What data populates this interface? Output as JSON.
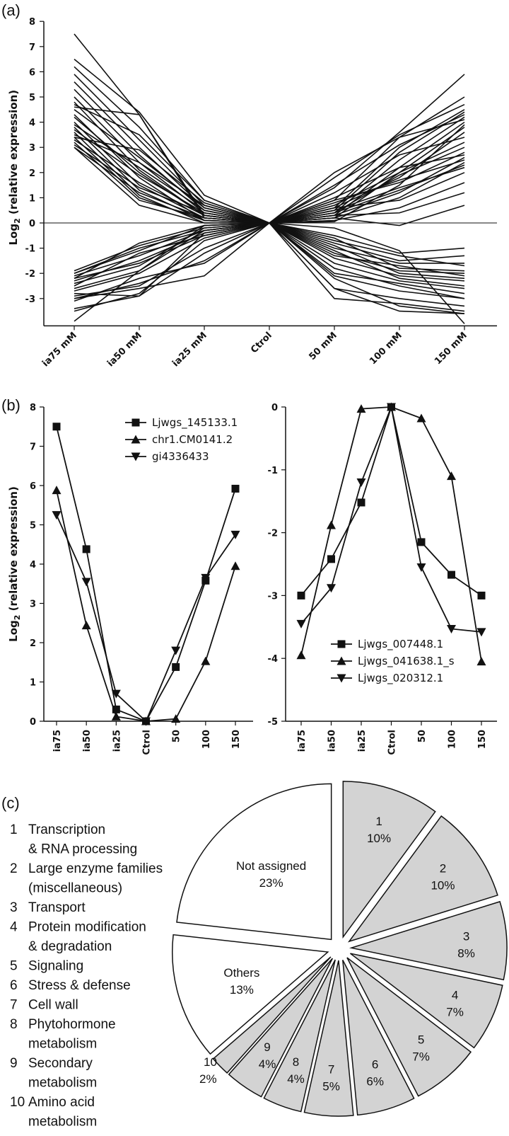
{
  "panels": {
    "a": "(a)",
    "b": "(b)",
    "c": "(c)"
  },
  "chart_data": [
    {
      "id": "a",
      "type": "line",
      "ylabel_main": "Log",
      "ylabel_sub": "2",
      "ylabel_rest": " (relative expression)",
      "categories": [
        "ia75 mM",
        "ia50 mM",
        "ia25 mM",
        "Ctrol",
        "50 mM",
        "100 mM",
        "150 mM"
      ],
      "ylim": [
        -4,
        8
      ],
      "yticks": [
        -3,
        -2,
        -1,
        0,
        1,
        2,
        3,
        4,
        5,
        6,
        7,
        8
      ],
      "series": [
        {
          "values": [
            7.5,
            4.3,
            0.3,
            0,
            1.4,
            3.6,
            5.9
          ]
        },
        {
          "values": [
            6.5,
            4.4,
            1.1,
            0,
            0.9,
            3.4,
            5.0
          ]
        },
        {
          "values": [
            6.2,
            3.8,
            0.9,
            0,
            0.6,
            3.0,
            4.5
          ]
        },
        {
          "values": [
            5.9,
            3.3,
            0.7,
            0,
            1.8,
            3.5,
            4.7
          ]
        },
        {
          "values": [
            5.6,
            3.0,
            0.6,
            0,
            0.5,
            2.8,
            4.4
          ]
        },
        {
          "values": [
            5.3,
            2.7,
            0.5,
            0,
            0.4,
            2.5,
            4.2
          ]
        },
        {
          "values": [
            5.0,
            2.4,
            0.4,
            0,
            0.3,
            2.2,
            4.0
          ]
        },
        {
          "values": [
            4.8,
            2.1,
            0.3,
            0,
            0.2,
            2.0,
            3.8
          ]
        },
        {
          "values": [
            4.6,
            4.3,
            0.2,
            0,
            0.6,
            1.8,
            3.6
          ]
        },
        {
          "values": [
            4.5,
            2.6,
            0.6,
            0,
            1.2,
            2.7,
            3.4
          ]
        },
        {
          "values": [
            4.3,
            1.8,
            0.1,
            0,
            0.05,
            1.5,
            3.9
          ]
        },
        {
          "values": [
            4.2,
            2.0,
            0.3,
            0,
            0.7,
            2.0,
            3.2
          ]
        },
        {
          "values": [
            4.0,
            1.5,
            0.2,
            0,
            0.4,
            1.9,
            3.0
          ]
        },
        {
          "values": [
            3.9,
            2.2,
            0.5,
            0,
            0.9,
            1.6,
            2.8
          ]
        },
        {
          "values": [
            3.8,
            1.3,
            0.1,
            0,
            0.3,
            1.2,
            2.6
          ]
        },
        {
          "values": [
            3.7,
            1.9,
            0.4,
            0,
            0.8,
            1.7,
            2.5
          ]
        },
        {
          "values": [
            3.6,
            1.1,
            0.0,
            0,
            0.2,
            1.0,
            2.4
          ]
        },
        {
          "values": [
            3.5,
            2.4,
            0.7,
            0,
            1.0,
            2.2,
            2.7
          ]
        },
        {
          "values": [
            3.4,
            1.0,
            0.1,
            0,
            0.5,
            1.4,
            2.2
          ]
        },
        {
          "values": [
            3.3,
            1.6,
            0.3,
            0,
            0.6,
            0.9,
            2.0
          ]
        },
        {
          "values": [
            3.2,
            0.9,
            0.2,
            0,
            0.1,
            0.6,
            1.6
          ]
        },
        {
          "values": [
            3.1,
            1.4,
            0.4,
            0,
            0.4,
            1.3,
            2.3
          ]
        },
        {
          "values": [
            3.0,
            0.7,
            0.0,
            0,
            0.3,
            0.4,
            1.2
          ]
        },
        {
          "values": [
            3.0,
            1.2,
            0.2,
            0,
            0.2,
            -0.1,
            0.7
          ]
        },
        {
          "values": [
            3.4,
            2.9,
            0.8,
            0,
            1.5,
            3.1,
            4.3
          ]
        },
        {
          "values": [
            4.7,
            3.5,
            0.9,
            0,
            2.0,
            3.4,
            4.1
          ]
        },
        {
          "values": [
            -1.9,
            -0.9,
            -0.2,
            0,
            -0.5,
            -1.2,
            -1.0
          ]
        },
        {
          "values": [
            -2.0,
            -1.1,
            -0.1,
            0,
            -0.8,
            -1.5,
            -1.3
          ]
        },
        {
          "values": [
            -2.1,
            -1.3,
            -0.3,
            0,
            -1.0,
            -1.6,
            -1.6
          ]
        },
        {
          "values": [
            -2.2,
            -0.8,
            -0.1,
            0,
            -0.6,
            -1.8,
            -1.9
          ]
        },
        {
          "values": [
            -2.3,
            -1.5,
            -0.4,
            0,
            -1.2,
            -1.9,
            -2.0
          ]
        },
        {
          "values": [
            -2.4,
            -1.7,
            -0.2,
            0,
            -0.9,
            -2.0,
            -2.2
          ]
        },
        {
          "values": [
            -2.5,
            -1.2,
            -0.5,
            0,
            -1.4,
            -2.1,
            -2.3
          ]
        },
        {
          "values": [
            -2.6,
            -1.9,
            -0.3,
            0,
            -1.1,
            -2.2,
            -2.5
          ]
        },
        {
          "values": [
            -2.7,
            -2.0,
            -0.6,
            0,
            -1.6,
            -2.3,
            -2.6
          ]
        },
        {
          "values": [
            -2.8,
            -2.9,
            -0.4,
            0,
            -2.0,
            -2.4,
            -2.8
          ]
        },
        {
          "values": [
            -2.9,
            -2.5,
            -1.0,
            0,
            -1.8,
            -2.5,
            -3.0
          ]
        },
        {
          "values": [
            -3.0,
            -2.6,
            -2.1,
            0,
            -2.6,
            -3.0,
            -3.3
          ]
        },
        {
          "values": [
            -3.1,
            -2.2,
            -1.6,
            0,
            -3.0,
            -3.2,
            -3.5
          ]
        },
        {
          "values": [
            -3.5,
            -2.8,
            -0.7,
            0,
            -2.2,
            -3.3,
            -3.6
          ]
        },
        {
          "values": [
            -3.9,
            -1.9,
            -0.1,
            0,
            -0.2,
            -1.1,
            -4.0
          ]
        },
        {
          "values": [
            -3.0,
            -2.4,
            -1.5,
            0,
            -2.1,
            -2.7,
            -3.0
          ]
        },
        {
          "values": [
            -3.4,
            -2.9,
            -1.2,
            0,
            -2.6,
            -3.5,
            -3.6
          ]
        },
        {
          "values": [
            -2.0,
            -1.0,
            -0.3,
            0,
            -0.7,
            -1.3,
            -1.7
          ]
        },
        {
          "values": [
            -2.2,
            -1.6,
            -0.5,
            0,
            -1.3,
            -1.7,
            -2.1
          ]
        }
      ]
    },
    {
      "id": "b-left",
      "type": "line",
      "ylabel_main": "Log",
      "ylabel_sub": "2",
      "ylabel_rest": " (relative expression)",
      "categories": [
        "ia75",
        "ia50",
        "ia25",
        "Ctrol",
        "50",
        "100",
        "150"
      ],
      "ylim": [
        0,
        8
      ],
      "yticks": [
        0,
        1,
        2,
        3,
        4,
        5,
        6,
        7,
        8
      ],
      "series": [
        {
          "name": "Ljwgs_145133.1",
          "marker": "square",
          "values": [
            7.5,
            4.38,
            0.3,
            0,
            1.38,
            3.58,
            5.92
          ]
        },
        {
          "name": "chr1.CM0141.2",
          "marker": "triangle-up",
          "values": [
            5.88,
            2.44,
            0.12,
            0,
            0.06,
            1.53,
            3.95
          ]
        },
        {
          "name": "gi4336433",
          "marker": "triangle-down",
          "values": [
            5.25,
            3.55,
            0.7,
            0,
            1.8,
            3.65,
            4.75
          ]
        }
      ]
    },
    {
      "id": "b-right",
      "type": "line",
      "categories": [
        "ia75",
        "ia50",
        "ia25",
        "Ctrol",
        "50",
        "100",
        "150"
      ],
      "ylim": [
        -5,
        0
      ],
      "yticks": [
        -5,
        -4,
        -3,
        -2,
        -1,
        0
      ],
      "series": [
        {
          "name": "Ljwgs_007448.1",
          "marker": "square",
          "values": [
            -3.0,
            -2.42,
            -1.52,
            0,
            -2.15,
            -2.67,
            -3.0
          ]
        },
        {
          "name": "Ljwgs_041638.1_s",
          "marker": "triangle-up",
          "values": [
            -3.95,
            -1.88,
            -0.03,
            0,
            -0.18,
            -1.1,
            -4.05
          ]
        },
        {
          "name": "Ljwgs_020312.1",
          "marker": "triangle-down",
          "values": [
            -3.45,
            -2.88,
            -1.2,
            0,
            -2.55,
            -3.53,
            -3.58
          ]
        }
      ]
    },
    {
      "id": "c",
      "type": "pie",
      "legend": [
        {
          "num": "1",
          "lines": [
            "Transcription",
            "& RNA processing"
          ]
        },
        {
          "num": "2",
          "lines": [
            "Large enzyme families",
            "(miscellaneous)"
          ]
        },
        {
          "num": "3",
          "lines": [
            "Transport"
          ]
        },
        {
          "num": "4",
          "lines": [
            "Protein modification",
            "& degradation"
          ]
        },
        {
          "num": "5",
          "lines": [
            "Signaling"
          ]
        },
        {
          "num": "6",
          "lines": [
            "Stress & defense"
          ]
        },
        {
          "num": "7",
          "lines": [
            "Cell wall"
          ]
        },
        {
          "num": "8",
          "lines": [
            "Phytohormone",
            "metabolism"
          ]
        },
        {
          "num": "9",
          "lines": [
            "Secondary",
            "metabolism"
          ]
        },
        {
          "num": "10",
          "lines": [
            "Amino acid",
            "metabolism"
          ]
        }
      ],
      "slices": [
        {
          "label": "1",
          "pct": "10%",
          "value": 10,
          "fill": "#d3d3d3"
        },
        {
          "label": "2",
          "pct": "10%",
          "value": 10,
          "fill": "#d3d3d3"
        },
        {
          "label": "3",
          "pct": "8%",
          "value": 8,
          "fill": "#d3d3d3"
        },
        {
          "label": "4",
          "pct": "7%",
          "value": 7,
          "fill": "#d3d3d3"
        },
        {
          "label": "5",
          "pct": "7%",
          "value": 7,
          "fill": "#d3d3d3"
        },
        {
          "label": "6",
          "pct": "6%",
          "value": 6,
          "fill": "#d3d3d3"
        },
        {
          "label": "7",
          "pct": "5%",
          "value": 5,
          "fill": "#d3d3d3"
        },
        {
          "label": "8",
          "pct": "4%",
          "value": 4,
          "fill": "#d3d3d3"
        },
        {
          "label": "9",
          "pct": "4%",
          "value": 4,
          "fill": "#d3d3d3"
        },
        {
          "label": "10",
          "pct": "2%",
          "value": 2,
          "fill": "#d3d3d3"
        },
        {
          "label": "Others",
          "pct": "13%",
          "value": 13,
          "fill": "#ffffff"
        },
        {
          "label": "Not assigned",
          "pct": "23%",
          "value": 23,
          "fill": "#ffffff"
        }
      ]
    }
  ]
}
